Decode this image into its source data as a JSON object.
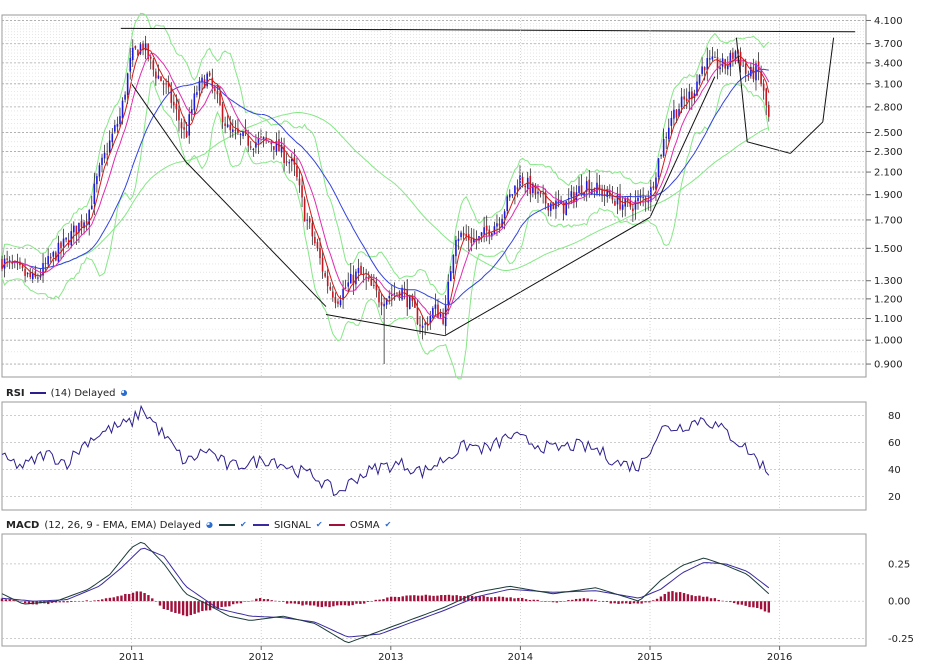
{
  "chart_data": [
    {
      "type": "candlestick",
      "title": "",
      "y_scale": "log",
      "y_ticks": [
        "4.100",
        "3.700",
        "3.400",
        "3.100",
        "2.800",
        "2.500",
        "2.300",
        "2.100",
        "1.900",
        "1.700",
        "1.500",
        "1.300",
        "1.200",
        "1.100",
        "1.000",
        "0.900"
      ],
      "ylim": [
        0.85,
        4.2
      ],
      "x_ticks": [
        "2011",
        "2012",
        "2013",
        "2014",
        "2015",
        "2016"
      ],
      "xlim": [
        "2010-01",
        "2016-09"
      ],
      "price_path": [
        {
          "x": "2010-01",
          "y": 1.42
        },
        {
          "x": "2010-04",
          "y": 1.3
        },
        {
          "x": "2010-07",
          "y": 1.55
        },
        {
          "x": "2010-09",
          "y": 1.75
        },
        {
          "x": "2010-10",
          "y": 2.1
        },
        {
          "x": "2010-12",
          "y": 2.7
        },
        {
          "x": "2011-01",
          "y": 3.5
        },
        {
          "x": "2011-02",
          "y": 3.7
        },
        {
          "x": "2011-03",
          "y": 3.3
        },
        {
          "x": "2011-04",
          "y": 3.1
        },
        {
          "x": "2011-06",
          "y": 2.45
        },
        {
          "x": "2011-07",
          "y": 3.0
        },
        {
          "x": "2011-08",
          "y": 3.2
        },
        {
          "x": "2011-10",
          "y": 2.5
        },
        {
          "x": "2011-12",
          "y": 2.4
        },
        {
          "x": "2012-02",
          "y": 2.4
        },
        {
          "x": "2012-04",
          "y": 2.15
        },
        {
          "x": "2012-05",
          "y": 1.75
        },
        {
          "x": "2012-07",
          "y": 1.3
        },
        {
          "x": "2012-08",
          "y": 1.2
        },
        {
          "x": "2012-10",
          "y": 1.35
        },
        {
          "x": "2012-12",
          "y": 1.2
        },
        {
          "x": "2013-02",
          "y": 1.25
        },
        {
          "x": "2013-04",
          "y": 1.05
        },
        {
          "x": "2013-05",
          "y": 1.15
        },
        {
          "x": "2013-06",
          "y": 1.1
        },
        {
          "x": "2013-07",
          "y": 1.6
        },
        {
          "x": "2013-09",
          "y": 1.55
        },
        {
          "x": "2013-11",
          "y": 1.7
        },
        {
          "x": "2014-01",
          "y": 2.05
        },
        {
          "x": "2014-03",
          "y": 1.85
        },
        {
          "x": "2014-05",
          "y": 1.8
        },
        {
          "x": "2014-07",
          "y": 2.0
        },
        {
          "x": "2014-09",
          "y": 1.9
        },
        {
          "x": "2014-11",
          "y": 1.8
        },
        {
          "x": "2015-01",
          "y": 1.9
        },
        {
          "x": "2015-03",
          "y": 2.7
        },
        {
          "x": "2015-05",
          "y": 3.0
        },
        {
          "x": "2015-06",
          "y": 3.4
        },
        {
          "x": "2015-08",
          "y": 3.35
        },
        {
          "x": "2015-09",
          "y": 3.6
        },
        {
          "x": "2015-10",
          "y": 3.2
        },
        {
          "x": "2015-11",
          "y": 3.3
        },
        {
          "x": "2015-12",
          "y": 2.65
        }
      ],
      "overlays": [
        "moving averages (red, magenta, blue)",
        "bollinger bands (light green)",
        "trend lines (black)"
      ],
      "resistance_level": 3.9
    },
    {
      "type": "line",
      "title": "RSI",
      "series": [
        {
          "name": "(14) Delayed",
          "values": [
            {
              "x": "2010-01",
              "y": 48
            },
            {
              "x": "2010-03",
              "y": 42
            },
            {
              "x": "2010-05",
              "y": 52
            },
            {
              "x": "2010-07",
              "y": 45
            },
            {
              "x": "2010-09",
              "y": 62
            },
            {
              "x": "2010-11",
              "y": 70
            },
            {
              "x": "2011-01",
              "y": 75
            },
            {
              "x": "2011-02",
              "y": 85
            },
            {
              "x": "2011-04",
              "y": 65
            },
            {
              "x": "2011-06",
              "y": 45
            },
            {
              "x": "2011-08",
              "y": 55
            },
            {
              "x": "2011-10",
              "y": 42
            },
            {
              "x": "2011-12",
              "y": 45
            },
            {
              "x": "2012-02",
              "y": 48
            },
            {
              "x": "2012-04",
              "y": 40
            },
            {
              "x": "2012-06",
              "y": 35
            },
            {
              "x": "2012-08",
              "y": 22
            },
            {
              "x": "2012-10",
              "y": 35
            },
            {
              "x": "2012-12",
              "y": 42
            },
            {
              "x": "2013-02",
              "y": 44
            },
            {
              "x": "2013-04",
              "y": 38
            },
            {
              "x": "2013-06",
              "y": 48
            },
            {
              "x": "2013-08",
              "y": 58
            },
            {
              "x": "2013-10",
              "y": 55
            },
            {
              "x": "2013-12",
              "y": 65
            },
            {
              "x": "2014-02",
              "y": 60
            },
            {
              "x": "2014-04",
              "y": 55
            },
            {
              "x": "2014-06",
              "y": 58
            },
            {
              "x": "2014-08",
              "y": 55
            },
            {
              "x": "2014-10",
              "y": 45
            },
            {
              "x": "2014-12",
              "y": 42
            },
            {
              "x": "2015-02",
              "y": 70
            },
            {
              "x": "2015-04",
              "y": 72
            },
            {
              "x": "2015-06",
              "y": 78
            },
            {
              "x": "2015-08",
              "y": 68
            },
            {
              "x": "2015-10",
              "y": 55
            },
            {
              "x": "2015-12",
              "y": 38
            }
          ]
        }
      ],
      "y_ticks": [
        20,
        40,
        60,
        80
      ],
      "ylim": [
        10,
        90
      ]
    },
    {
      "type": "line",
      "title": "MACD",
      "params": "(12, 26, 9 - EMA, EMA) Delayed",
      "legend": [
        "SIGNAL",
        "OSMA"
      ],
      "series": [
        {
          "name": "MACD",
          "values": [
            {
              "x": "2010-01",
              "y": 0.05
            },
            {
              "x": "2010-03",
              "y": -0.02
            },
            {
              "x": "2010-06",
              "y": 0.0
            },
            {
              "x": "2010-09",
              "y": 0.08
            },
            {
              "x": "2010-11",
              "y": 0.18
            },
            {
              "x": "2011-01",
              "y": 0.36
            },
            {
              "x": "2011-02",
              "y": 0.4
            },
            {
              "x": "2011-04",
              "y": 0.25
            },
            {
              "x": "2011-06",
              "y": 0.05
            },
            {
              "x": "2011-08",
              "y": -0.02
            },
            {
              "x": "2011-10",
              "y": -0.1
            },
            {
              "x": "2011-12",
              "y": -0.13
            },
            {
              "x": "2012-03",
              "y": -0.1
            },
            {
              "x": "2012-06",
              "y": -0.15
            },
            {
              "x": "2012-09",
              "y": -0.28
            },
            {
              "x": "2012-12",
              "y": -0.2
            },
            {
              "x": "2013-03",
              "y": -0.12
            },
            {
              "x": "2013-06",
              "y": -0.04
            },
            {
              "x": "2013-09",
              "y": 0.06
            },
            {
              "x": "2013-12",
              "y": 0.1
            },
            {
              "x": "2014-04",
              "y": 0.05
            },
            {
              "x": "2014-08",
              "y": 0.09
            },
            {
              "x": "2014-12",
              "y": 0.0
            },
            {
              "x": "2015-02",
              "y": 0.14
            },
            {
              "x": "2015-04",
              "y": 0.24
            },
            {
              "x": "2015-06",
              "y": 0.29
            },
            {
              "x": "2015-08",
              "y": 0.24
            },
            {
              "x": "2015-10",
              "y": 0.18
            },
            {
              "x": "2015-12",
              "y": 0.05
            }
          ]
        },
        {
          "name": "SIGNAL",
          "values": [
            {
              "x": "2010-01",
              "y": 0.02
            },
            {
              "x": "2010-04",
              "y": 0.0
            },
            {
              "x": "2010-07",
              "y": 0.01
            },
            {
              "x": "2010-10",
              "y": 0.1
            },
            {
              "x": "2010-12",
              "y": 0.22
            },
            {
              "x": "2011-02",
              "y": 0.36
            },
            {
              "x": "2011-04",
              "y": 0.3
            },
            {
              "x": "2011-06",
              "y": 0.1
            },
            {
              "x": "2011-09",
              "y": -0.05
            },
            {
              "x": "2011-12",
              "y": -0.1
            },
            {
              "x": "2012-03",
              "y": -0.11
            },
            {
              "x": "2012-06",
              "y": -0.14
            },
            {
              "x": "2012-09",
              "y": -0.24
            },
            {
              "x": "2012-12",
              "y": -0.22
            },
            {
              "x": "2013-03",
              "y": -0.14
            },
            {
              "x": "2013-06",
              "y": -0.06
            },
            {
              "x": "2013-09",
              "y": 0.03
            },
            {
              "x": "2013-12",
              "y": 0.08
            },
            {
              "x": "2014-04",
              "y": 0.06
            },
            {
              "x": "2014-08",
              "y": 0.07
            },
            {
              "x": "2014-12",
              "y": 0.02
            },
            {
              "x": "2015-02",
              "y": 0.08
            },
            {
              "x": "2015-04",
              "y": 0.19
            },
            {
              "x": "2015-06",
              "y": 0.26
            },
            {
              "x": "2015-08",
              "y": 0.25
            },
            {
              "x": "2015-10",
              "y": 0.2
            },
            {
              "x": "2015-12",
              "y": 0.09
            }
          ]
        },
        {
          "name": "OSMA",
          "type": "bar",
          "values": [
            {
              "x": "2010-01",
              "y": 0.02
            },
            {
              "x": "2010-04",
              "y": -0.02
            },
            {
              "x": "2010-07",
              "y": -0.01
            },
            {
              "x": "2010-10",
              "y": 0.01
            },
            {
              "x": "2010-12",
              "y": 0.04
            },
            {
              "x": "2011-02",
              "y": 0.07
            },
            {
              "x": "2011-04",
              "y": -0.05
            },
            {
              "x": "2011-06",
              "y": -0.1
            },
            {
              "x": "2011-08",
              "y": -0.06
            },
            {
              "x": "2011-10",
              "y": -0.03
            },
            {
              "x": "2012-01",
              "y": 0.02
            },
            {
              "x": "2012-04",
              "y": -0.02
            },
            {
              "x": "2012-07",
              "y": -0.04
            },
            {
              "x": "2012-10",
              "y": -0.02
            },
            {
              "x": "2013-01",
              "y": 0.03
            },
            {
              "x": "2013-04",
              "y": 0.04
            },
            {
              "x": "2013-07",
              "y": 0.04
            },
            {
              "x": "2013-10",
              "y": 0.03
            },
            {
              "x": "2014-01",
              "y": 0.02
            },
            {
              "x": "2014-04",
              "y": -0.01
            },
            {
              "x": "2014-07",
              "y": 0.02
            },
            {
              "x": "2014-10",
              "y": -0.02
            },
            {
              "x": "2015-01",
              "y": -0.01
            },
            {
              "x": "2015-03",
              "y": 0.07
            },
            {
              "x": "2015-05",
              "y": 0.04
            },
            {
              "x": "2015-07",
              "y": 0.02
            },
            {
              "x": "2015-09",
              "y": -0.02
            },
            {
              "x": "2015-11",
              "y": -0.05
            },
            {
              "x": "2015-12",
              "y": -0.08
            }
          ]
        }
      ],
      "y_ticks": [
        "0.25",
        "0.00",
        "-0.25"
      ],
      "ylim": [
        -0.3,
        0.45
      ]
    }
  ],
  "headers": {
    "rsi_title": "RSI",
    "rsi_params": "(14) Delayed",
    "macd_title": "MACD",
    "macd_params": "(12, 26, 9 - EMA, EMA) Delayed",
    "signal_label": "SIGNAL",
    "osma_label": "OSMA"
  },
  "colors": {
    "candle_up": "#1a1adf",
    "candle_down": "#c8141e",
    "ma_fast": "#d01c1c",
    "ma_mid": "#e02bb0",
    "ma_slow": "#3344dd",
    "bands": "#86e886",
    "rsi": "#2c1f8c",
    "macd": "#1c3a3a",
    "signal": "#3a2aa0",
    "osma": "#a0103a",
    "grid": "#c8c8c8"
  }
}
